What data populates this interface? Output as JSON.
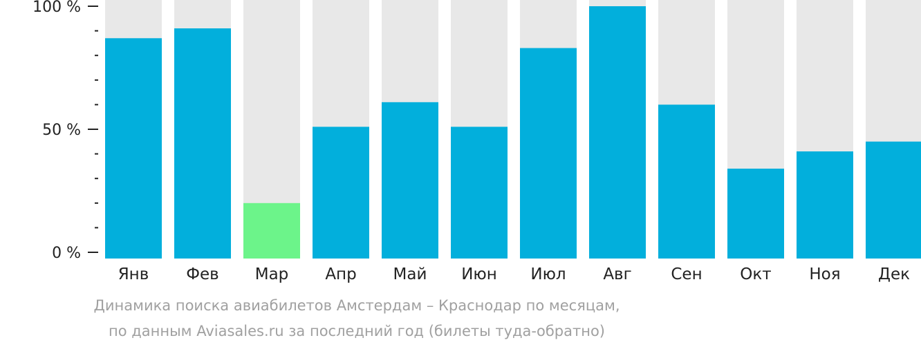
{
  "chart_data": {
    "type": "bar",
    "categories": [
      "Янв",
      "Фев",
      "Мар",
      "Апр",
      "Май",
      "Июн",
      "Июл",
      "Авг",
      "Сен",
      "Окт",
      "Ноя",
      "Дек"
    ],
    "values": [
      87,
      91,
      20,
      51,
      61,
      51,
      83,
      100,
      60,
      34,
      41,
      45
    ],
    "highlight_index": 2,
    "ylim": [
      0,
      100
    ],
    "yticks": [
      {
        "value": 100,
        "label": "100 %"
      },
      {
        "value": 50,
        "label": "50 %"
      },
      {
        "value": 0,
        "label": "0 %"
      }
    ],
    "minor_tick_step": 10,
    "colors": {
      "bar": "#02afdc",
      "highlight": "#6cf48a",
      "background_bar": "#e8e8e8",
      "text": "#222222",
      "caption": "#a0a0a0"
    }
  },
  "caption": {
    "line1": "Динамика поиска авиабилетов Амстердам – Краснодар по месяцам,",
    "line2": "по данным Aviasales.ru за последний год (билеты туда-обратно)"
  }
}
